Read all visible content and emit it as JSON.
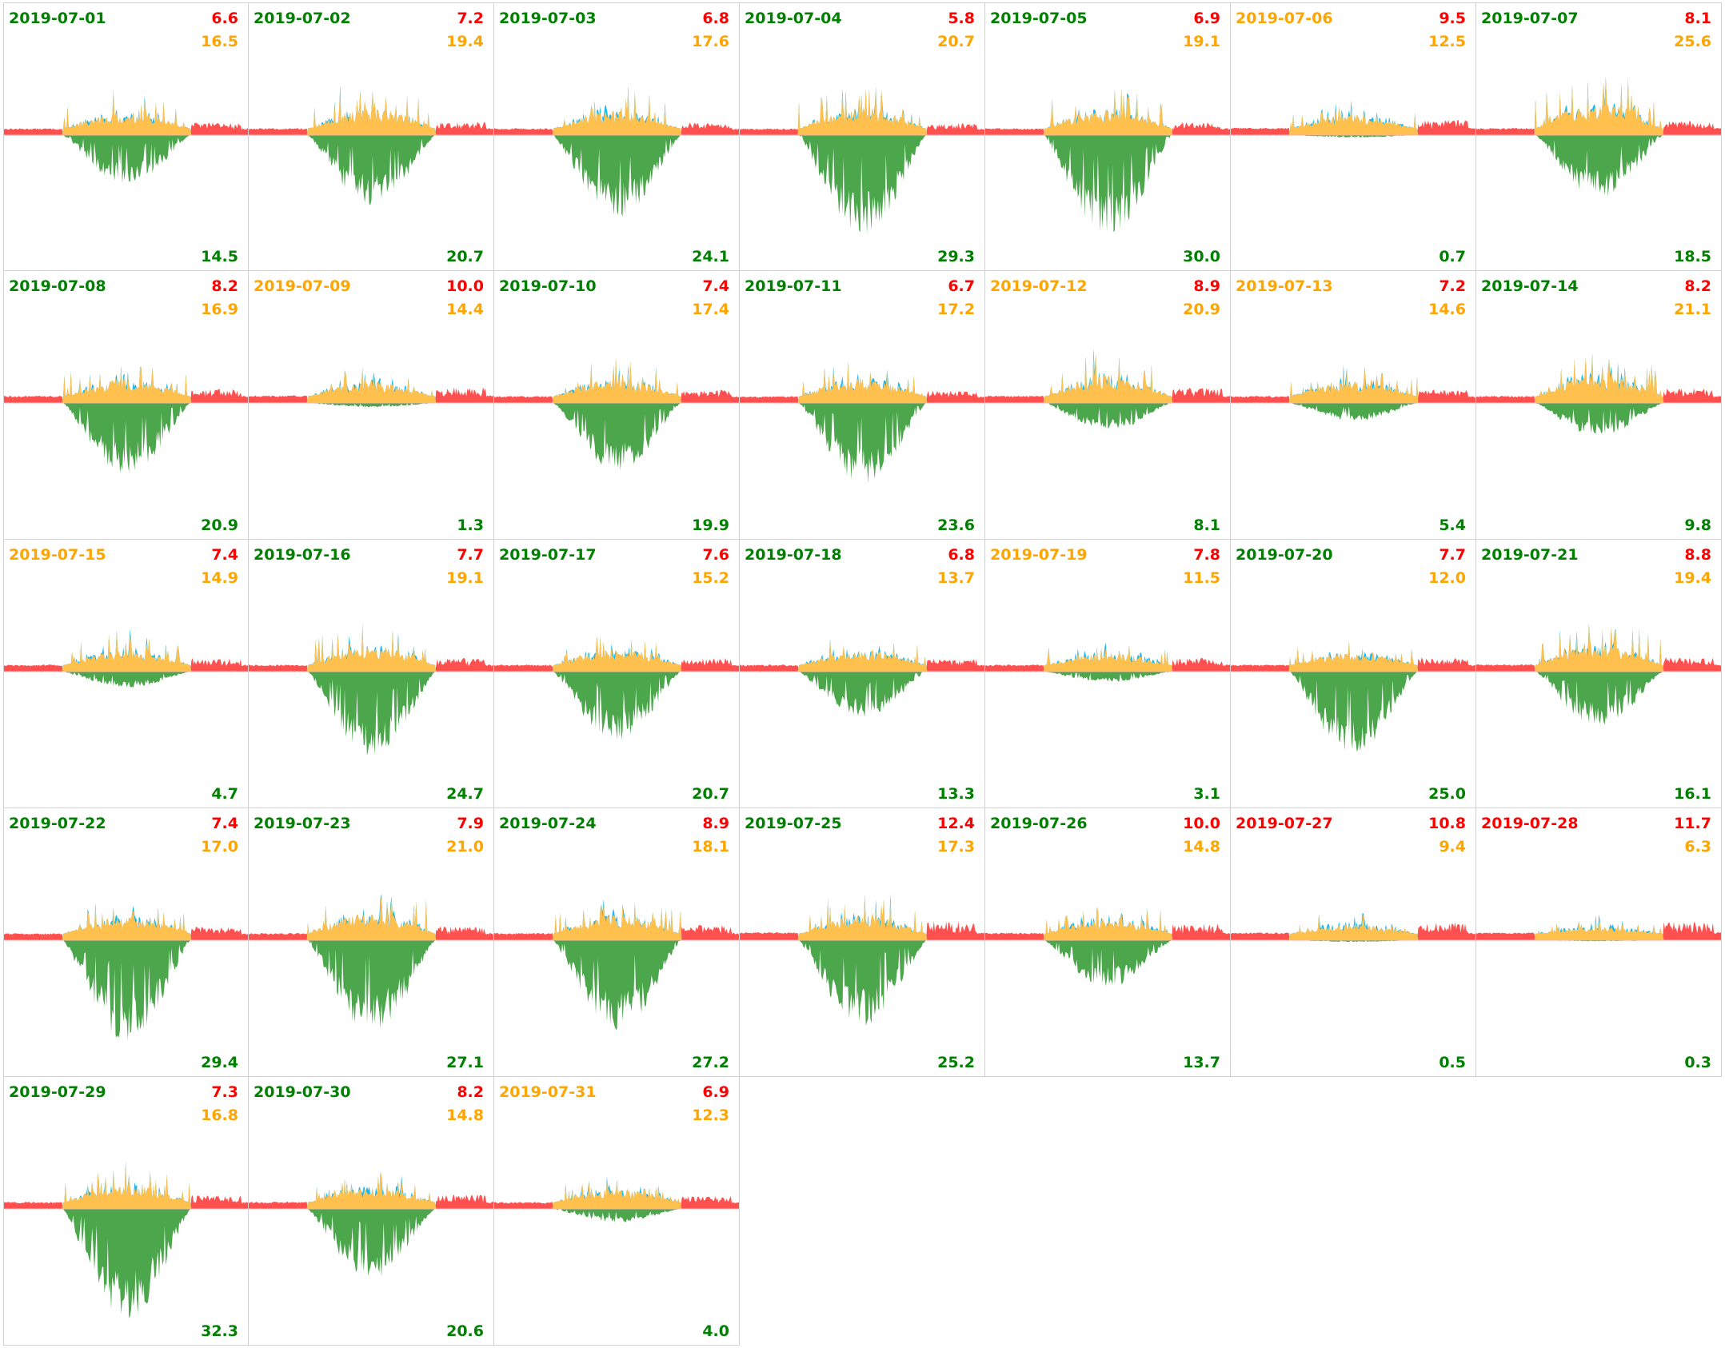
{
  "colors": {
    "green": "#008000",
    "orange": "#ffa500",
    "red": "#ff0000",
    "area_red": "#ff5050",
    "area_yellow": "#ffc04d",
    "area_blue": "#1ab8f0",
    "area_green": "#4ca64c"
  },
  "chart_data": {
    "type": "area",
    "title": "",
    "description_fields": [
      "date",
      "top_right_red",
      "second_right_orange",
      "bottom_right_green"
    ],
    "days": [
      {
        "date": "2019-07-01",
        "status": "green",
        "red": "6.6",
        "orange": "16.5",
        "green": "14.5"
      },
      {
        "date": "2019-07-02",
        "status": "green",
        "red": "7.2",
        "orange": "19.4",
        "green": "20.7"
      },
      {
        "date": "2019-07-03",
        "status": "green",
        "red": "6.8",
        "orange": "17.6",
        "green": "24.1"
      },
      {
        "date": "2019-07-04",
        "status": "green",
        "red": "5.8",
        "orange": "20.7",
        "green": "29.3"
      },
      {
        "date": "2019-07-05",
        "status": "green",
        "red": "6.9",
        "orange": "19.1",
        "green": "30.0"
      },
      {
        "date": "2019-07-06",
        "status": "orange",
        "red": "9.5",
        "orange": "12.5",
        "green": "0.7"
      },
      {
        "date": "2019-07-07",
        "status": "green",
        "red": "8.1",
        "orange": "25.6",
        "green": "18.5"
      },
      {
        "date": "2019-07-08",
        "status": "green",
        "red": "8.2",
        "orange": "16.9",
        "green": "20.9"
      },
      {
        "date": "2019-07-09",
        "status": "orange",
        "red": "10.0",
        "orange": "14.4",
        "green": "1.3"
      },
      {
        "date": "2019-07-10",
        "status": "green",
        "red": "7.4",
        "orange": "17.4",
        "green": "19.9"
      },
      {
        "date": "2019-07-11",
        "status": "green",
        "red": "6.7",
        "orange": "17.2",
        "green": "23.6"
      },
      {
        "date": "2019-07-12",
        "status": "orange",
        "red": "8.9",
        "orange": "20.9",
        "green": "8.1"
      },
      {
        "date": "2019-07-13",
        "status": "orange",
        "red": "7.2",
        "orange": "14.6",
        "green": "5.4"
      },
      {
        "date": "2019-07-14",
        "status": "green",
        "red": "8.2",
        "orange": "21.1",
        "green": "9.8"
      },
      {
        "date": "2019-07-15",
        "status": "orange",
        "red": "7.4",
        "orange": "14.9",
        "green": "4.7"
      },
      {
        "date": "2019-07-16",
        "status": "green",
        "red": "7.7",
        "orange": "19.1",
        "green": "24.7"
      },
      {
        "date": "2019-07-17",
        "status": "green",
        "red": "7.6",
        "orange": "15.2",
        "green": "20.7"
      },
      {
        "date": "2019-07-18",
        "status": "green",
        "red": "6.8",
        "orange": "13.7",
        "green": "13.3"
      },
      {
        "date": "2019-07-19",
        "status": "orange",
        "red": "7.8",
        "orange": "11.5",
        "green": "3.1"
      },
      {
        "date": "2019-07-20",
        "status": "green",
        "red": "7.7",
        "orange": "12.0",
        "green": "25.0"
      },
      {
        "date": "2019-07-21",
        "status": "green",
        "red": "8.8",
        "orange": "19.4",
        "green": "16.1"
      },
      {
        "date": "2019-07-22",
        "status": "green",
        "red": "7.4",
        "orange": "17.0",
        "green": "29.4"
      },
      {
        "date": "2019-07-23",
        "status": "green",
        "red": "7.9",
        "orange": "21.0",
        "green": "27.1"
      },
      {
        "date": "2019-07-24",
        "status": "green",
        "red": "8.9",
        "orange": "18.1",
        "green": "27.2"
      },
      {
        "date": "2019-07-25",
        "status": "green",
        "red": "12.4",
        "orange": "17.3",
        "green": "25.2"
      },
      {
        "date": "2019-07-26",
        "status": "green",
        "red": "10.0",
        "orange": "14.8",
        "green": "13.7"
      },
      {
        "date": "2019-07-27",
        "status": "red",
        "red": "10.8",
        "orange": "9.4",
        "green": "0.5"
      },
      {
        "date": "2019-07-28",
        "status": "red",
        "red": "11.7",
        "orange": "6.3",
        "green": "0.3"
      },
      {
        "date": "2019-07-29",
        "status": "green",
        "red": "7.3",
        "orange": "16.8",
        "green": "32.3"
      },
      {
        "date": "2019-07-30",
        "status": "green",
        "red": "8.2",
        "orange": "14.8",
        "green": "20.6"
      },
      {
        "date": "2019-07-31",
        "status": "orange",
        "red": "6.9",
        "orange": "12.3",
        "green": "4.0"
      }
    ]
  }
}
